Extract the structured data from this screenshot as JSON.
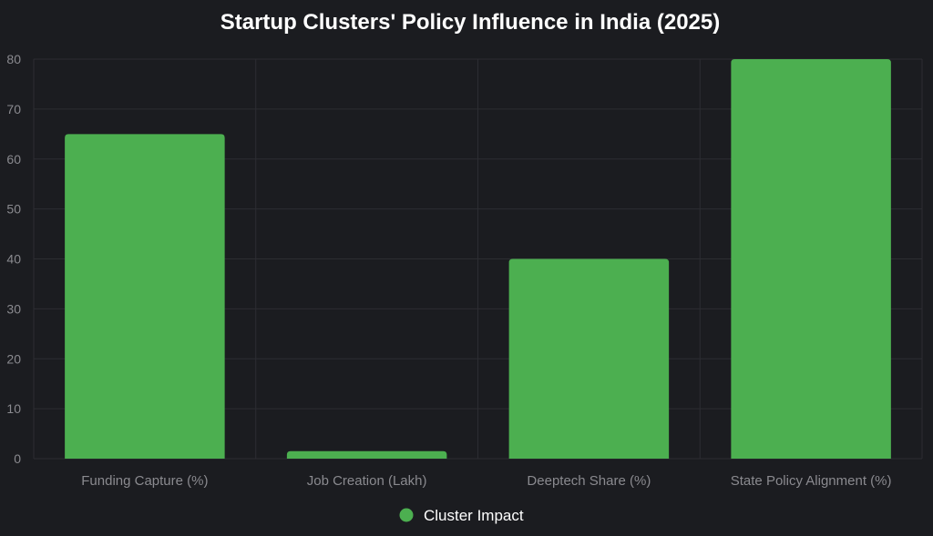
{
  "chart_data": {
    "type": "bar",
    "title": "Startup Clusters' Policy Influence in India (2025)",
    "categories": [
      "Funding Capture (%)",
      "Job Creation (Lakh)",
      "Deeptech Share (%)",
      "State Policy Alignment (%)"
    ],
    "series": [
      {
        "name": "Cluster Impact",
        "values": [
          65,
          1.5,
          40,
          80
        ]
      }
    ],
    "xlabel": "",
    "ylabel": "",
    "ylim": [
      0,
      80
    ],
    "yticks": [
      0,
      10,
      20,
      30,
      40,
      50,
      60,
      70,
      80
    ],
    "grid": true,
    "legend_position": "bottom-center"
  },
  "colors": {
    "bar": "#4caf50",
    "background": "#1b1c20"
  }
}
